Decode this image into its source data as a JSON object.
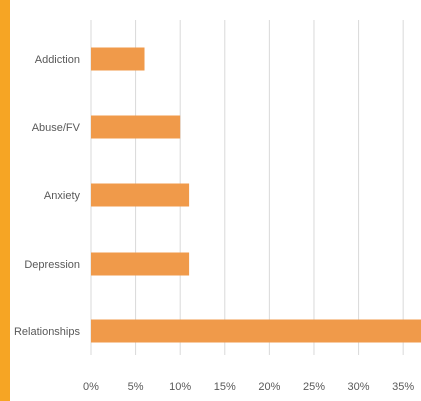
{
  "colors": {
    "accent_strip": "#f6a524",
    "bar": "#f09a4a",
    "grid": "#d9d9d9",
    "text": "#595959"
  },
  "chart_data": {
    "type": "bar",
    "orientation": "horizontal",
    "title": "",
    "xlabel": "",
    "ylabel": "",
    "categories": [
      "Addiction",
      "Abuse/FV",
      "Anxiety",
      "Depression",
      "Relationships"
    ],
    "values": [
      0.06,
      0.1,
      0.11,
      0.11,
      0.37
    ],
    "xlim": [
      0,
      0.37
    ],
    "x_ticks": [
      0,
      0.05,
      0.1,
      0.15,
      0.2,
      0.25,
      0.3,
      0.35
    ],
    "x_tick_labels": [
      "0%",
      "5%",
      "10%",
      "15%",
      "20%",
      "25%",
      "30%",
      "35%"
    ],
    "grid": true,
    "legend": "none"
  }
}
